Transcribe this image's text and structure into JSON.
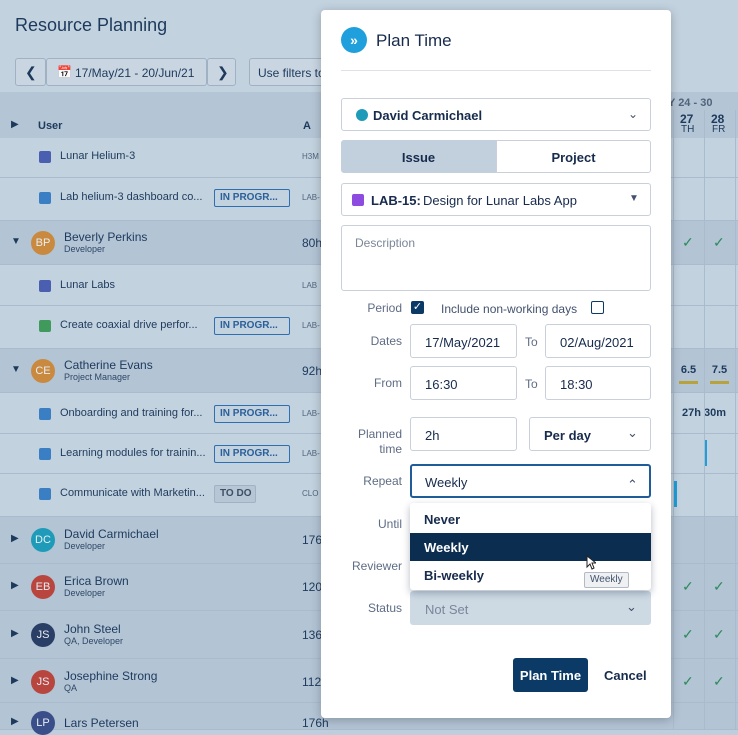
{
  "background": {
    "title": "Resource Planning",
    "date_range": "17/May/21 - 20/Jun/21",
    "filter_button": "Use filters to",
    "week_label": "Y 24 - 30",
    "days": [
      {
        "number": "27",
        "weekday": "TH"
      },
      {
        "number": "28",
        "weekday": "FR"
      }
    ],
    "columns": [
      "User",
      "A"
    ],
    "rows": [
      {
        "label": "Lunar Helium-3",
        "key": "H3M"
      },
      {
        "label": "Lab helium-3 dashboard co...",
        "status": "IN PROGR...",
        "key": "LAB-"
      },
      {
        "avatar": "BP",
        "label": "Beverly Perkins",
        "subtitle": "Developer",
        "hours": "80h"
      },
      {
        "label": "Lunar Labs",
        "key": "LAB"
      },
      {
        "label": "Create coaxial drive perfor...",
        "status": "IN PROGR...",
        "key": "LAB-"
      },
      {
        "avatar": "CE",
        "label": "Catherine Evans",
        "subtitle": "Project Manager",
        "hours": "92h",
        "cells": [
          "6.5",
          "7.5"
        ]
      },
      {
        "label": "Onboarding and training for...",
        "status": "IN PROGR...",
        "key": "LAB-",
        "cells": [
          "27h 30m"
        ]
      },
      {
        "label": "Learning modules for trainin...",
        "status": "IN PROGR...",
        "key": "LAB-"
      },
      {
        "label": "Communicate with Marketin...",
        "status": "TO DO",
        "key": "CLO"
      },
      {
        "avatar": "DC",
        "label": "David Carmichael",
        "subtitle": "Developer",
        "hours": "176"
      },
      {
        "avatar": "EB",
        "label": "Erica Brown",
        "subtitle": "Developer",
        "hours": "120"
      },
      {
        "avatar": "JS",
        "label": "John Steel",
        "subtitle": "QA, Developer",
        "hours": "136"
      },
      {
        "avatar": "JS",
        "label": "Josephine Strong",
        "subtitle": "QA",
        "hours": "112"
      },
      {
        "avatar": "LP",
        "label": "Lars Petersen",
        "hours": "176h"
      }
    ]
  },
  "modal": {
    "title": "Plan Time",
    "user": "David Carmichael",
    "tabs": [
      "Issue",
      "Project"
    ],
    "issue_key": "LAB-15:",
    "issue_title": "Design for Lunar Labs App",
    "description_placeholder": "Description",
    "period_label": "Period",
    "include_label": "Include non-working days",
    "dates_label": "Dates",
    "start_date": "17/May/2021",
    "to_label": "To",
    "end_date": "02/Aug/2021",
    "from_label": "From",
    "start_time": "16:30",
    "end_time": "18:30",
    "planned_label": "Planned time",
    "planned_value": "2h",
    "planned_unit": "Per day",
    "repeat_label": "Repeat",
    "repeat_value": "Weekly",
    "until_label": "Until",
    "repeat_options": [
      "Never",
      "Weekly",
      "Bi-weekly"
    ],
    "tooltip": "Weekly",
    "reviewer_label": "Reviewer",
    "status_label": "Status",
    "status_value": "Not Set",
    "submit": "Plan Time",
    "cancel": "Cancel"
  }
}
